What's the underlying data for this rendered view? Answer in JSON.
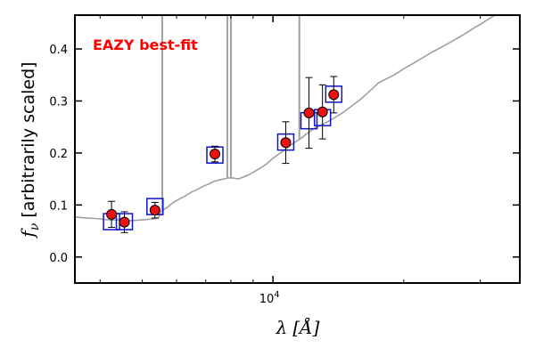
{
  "chart_data": {
    "type": "scatter",
    "xscale": "log",
    "xlim": [
      3500,
      37000
    ],
    "ylim": [
      -0.05,
      0.465
    ],
    "yticks": [
      0.0,
      0.1,
      0.2,
      0.3,
      0.4
    ],
    "ytick_labels": [
      "0.0",
      "0.1",
      "0.2",
      "0.3",
      "0.4"
    ],
    "xtick_major": [
      {
        "value": 10000,
        "label_base": "10",
        "label_exp": "4"
      }
    ],
    "xtick_minor": [
      4000,
      5000,
      6000,
      7000,
      8000,
      9000,
      20000,
      30000
    ],
    "xlabel_symbol": "λ",
    "xlabel_unit": "[Å]",
    "ylabel_symbol": "f",
    "ylabel_subscript": "ν",
    "ylabel_text": "[arbitrarily scaled]",
    "annotation": {
      "text": "EAZY best-fit",
      "color": "#ff0000"
    },
    "colors": {
      "model": "#a0a0a0",
      "marker_fill": "#ee1111",
      "square": "#1111cc",
      "errorbar": "#000000"
    },
    "model_sed": {
      "name": "EAZY best-fit",
      "x": [
        3500,
        3700,
        3900,
        4100,
        4300,
        4500,
        4700,
        4900,
        5100,
        5300,
        5450,
        5550,
        5700,
        5900,
        6100,
        6300,
        6500,
        6700,
        6900,
        7100,
        7300,
        7500,
        7700,
        7900,
        8100,
        8300,
        8500,
        8800,
        9100,
        9400,
        9700,
        10000,
        10400,
        10800,
        11200,
        11600,
        12000,
        12500,
        13000,
        13500,
        14000,
        14500,
        15000,
        15500,
        16000,
        16500,
        17000,
        17500,
        18000,
        18500,
        19000,
        20000,
        21000,
        22000,
        23000,
        24000,
        25000,
        26000,
        27000,
        28000,
        29000,
        30000,
        31000,
        32000,
        33000
      ],
      "y": [
        0.077,
        0.075,
        0.074,
        0.072,
        0.071,
        0.072,
        0.07,
        0.071,
        0.072,
        0.073,
        0.075,
        0.09,
        0.095,
        0.105,
        0.112,
        0.118,
        0.125,
        0.13,
        0.136,
        0.14,
        0.145,
        0.148,
        0.15,
        0.152,
        0.152,
        0.15,
        0.153,
        0.158,
        0.165,
        0.172,
        0.18,
        0.19,
        0.2,
        0.21,
        0.22,
        0.228,
        0.238,
        0.248,
        0.255,
        0.262,
        0.27,
        0.278,
        0.287,
        0.296,
        0.305,
        0.315,
        0.325,
        0.335,
        0.34,
        0.345,
        0.35,
        0.362,
        0.372,
        0.382,
        0.392,
        0.4,
        0.408,
        0.416,
        0.424,
        0.432,
        0.44,
        0.447,
        0.455,
        0.462,
        0.47
      ],
      "emission_lines": [
        {
          "x": 5560,
          "ytop": 0.5
        },
        {
          "x": 7850,
          "ytop": 0.5
        },
        {
          "x": 8000,
          "ytop": 0.5
        },
        {
          "x": 11500,
          "ytop": 0.5
        }
      ]
    },
    "model_photometry": {
      "name": "Model photometry",
      "x": [
        4250,
        4550,
        5350,
        7350,
        10700,
        12100,
        13000,
        13800
      ],
      "y": [
        0.068,
        0.068,
        0.097,
        0.196,
        0.221,
        0.262,
        0.268,
        0.313
      ]
    },
    "observed": {
      "name": "Observed photometry",
      "x": [
        4250,
        4550,
        5350,
        7350,
        10700,
        12100,
        13000,
        13800
      ],
      "y": [
        0.082,
        0.067,
        0.09,
        0.198,
        0.22,
        0.277,
        0.279,
        0.312
      ],
      "err_low": [
        0.025,
        0.02,
        0.015,
        0.015,
        0.04,
        0.068,
        0.052,
        0.035
      ],
      "err_high": [
        0.025,
        0.02,
        0.015,
        0.015,
        0.04,
        0.068,
        0.052,
        0.035
      ]
    }
  }
}
